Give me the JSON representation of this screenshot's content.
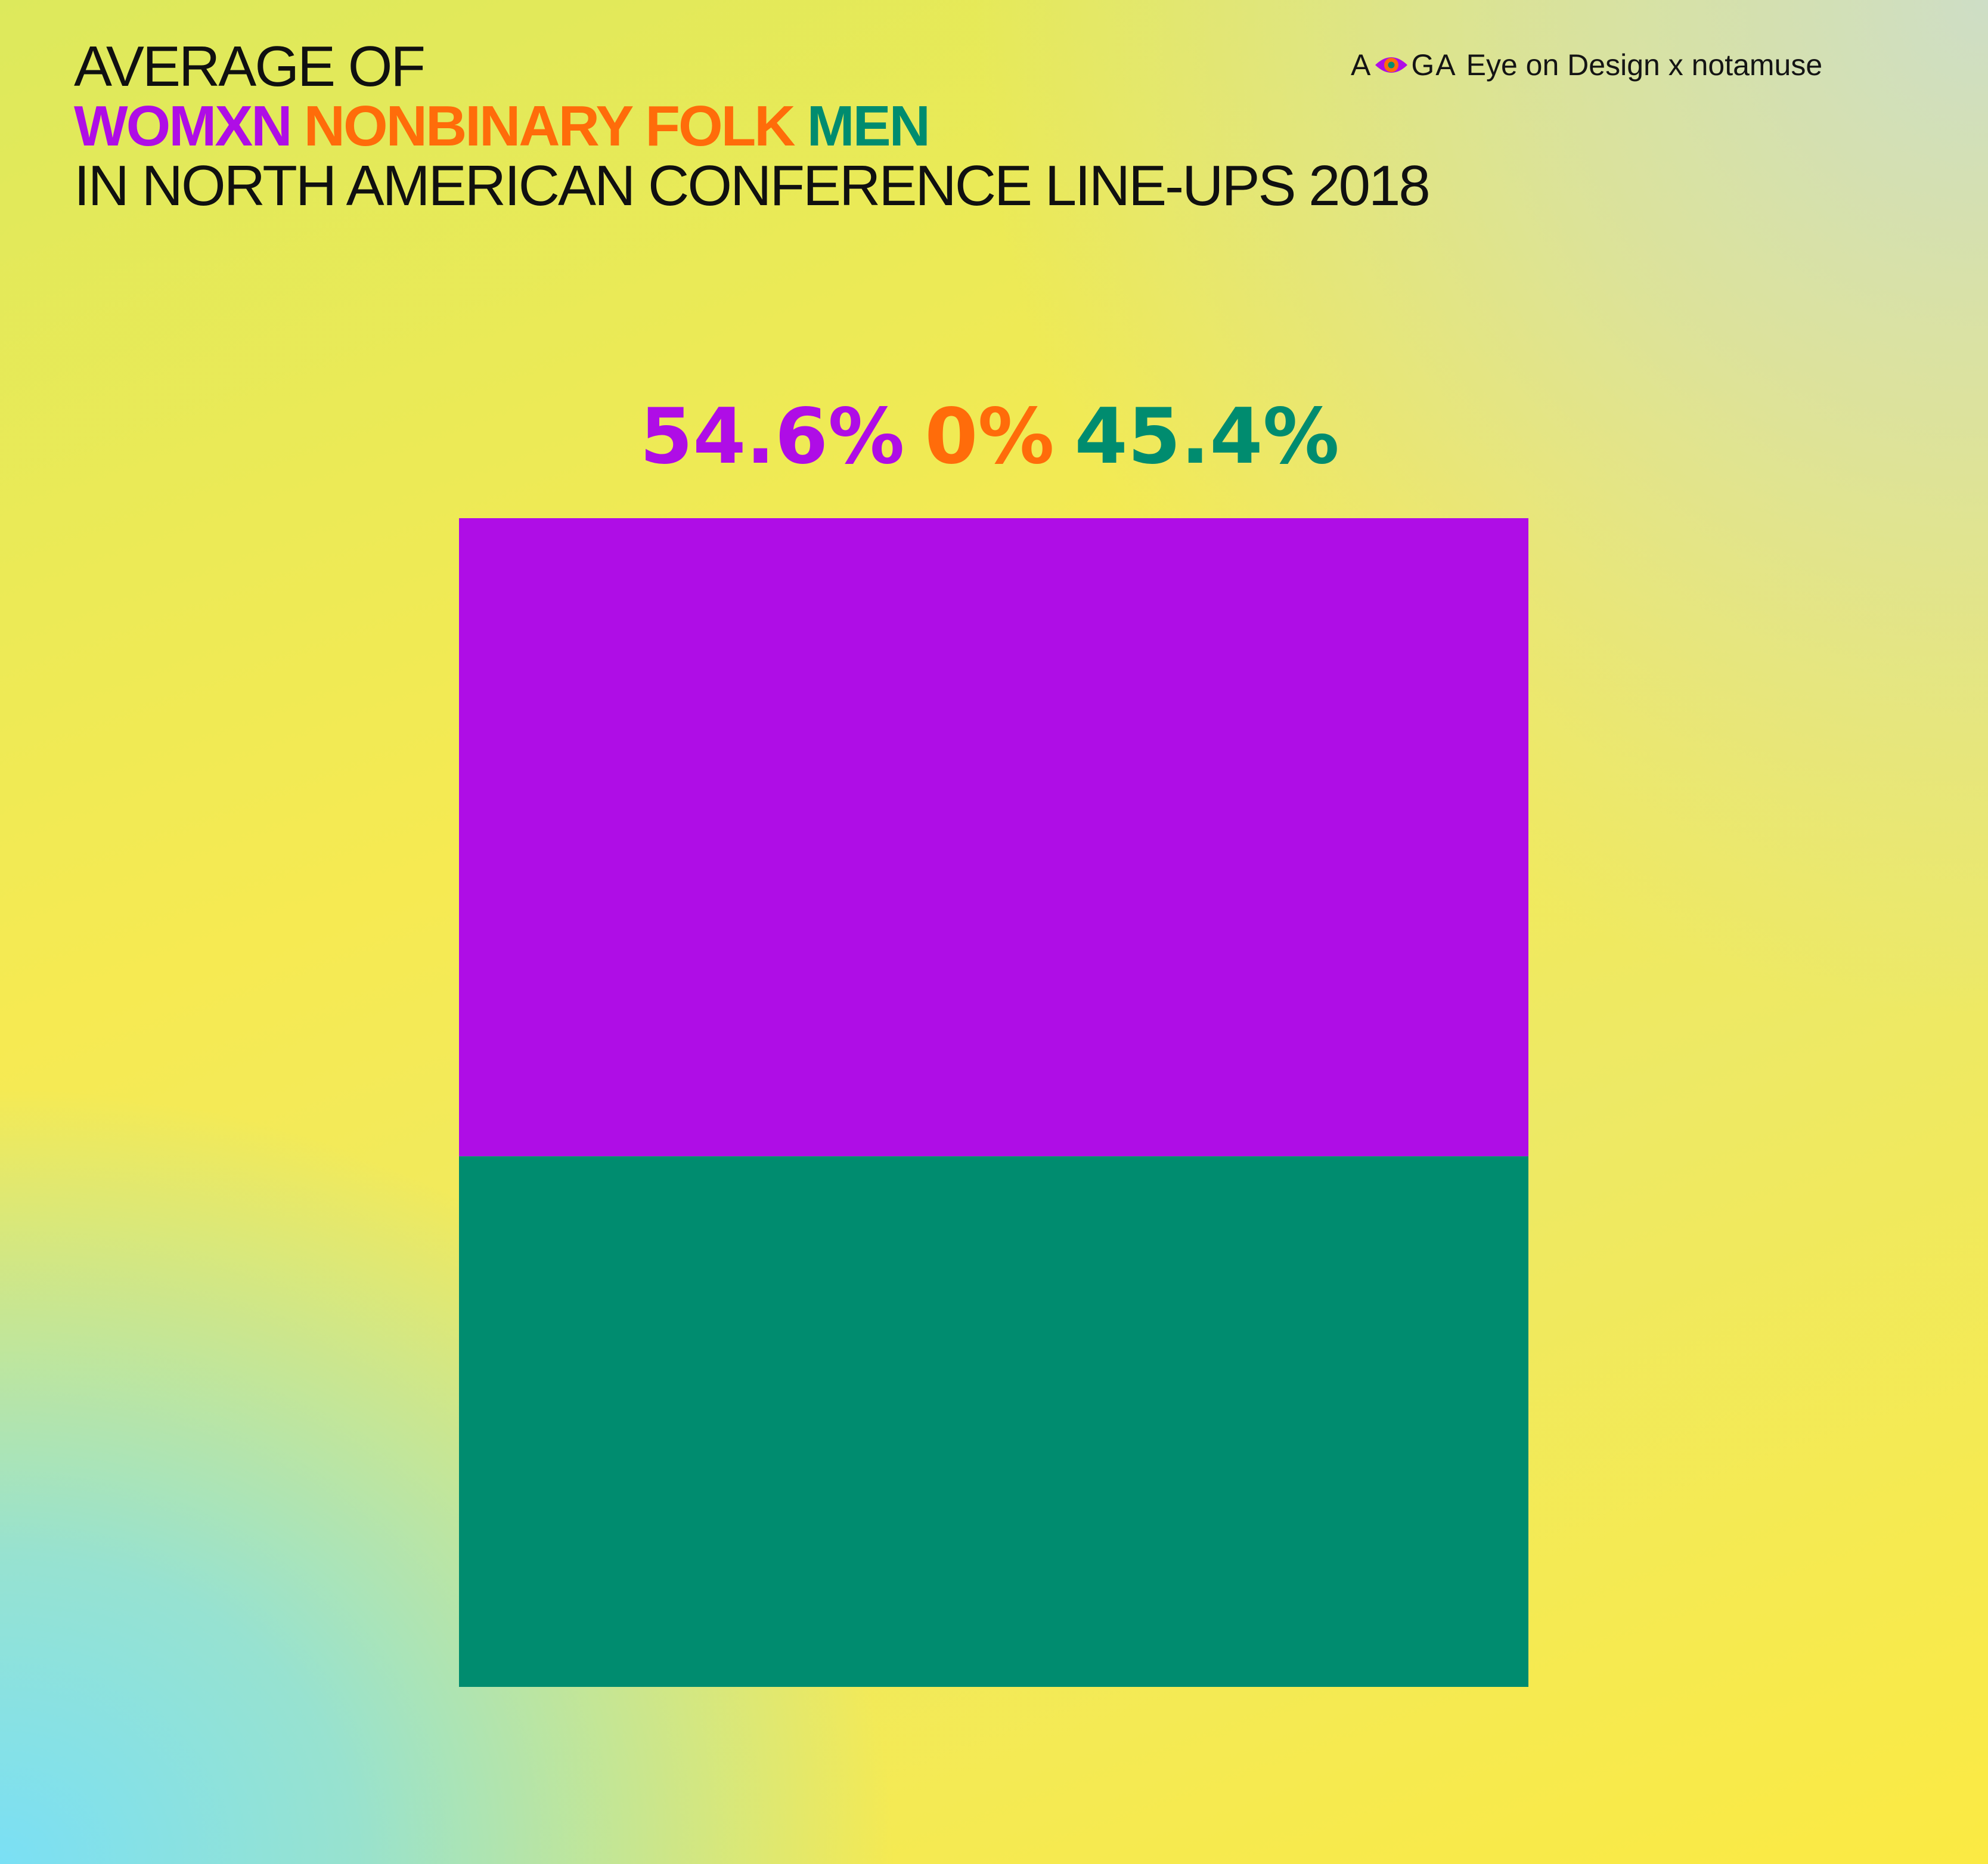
{
  "title": {
    "line1": "AVERAGE OF",
    "categories": [
      {
        "label": "WOMXN",
        "color": "#af0de6"
      },
      {
        "label": "NONBINARY FOLK",
        "color": "#ff6c0a"
      },
      {
        "label": "MEN",
        "color": "#008c6f"
      }
    ],
    "line3": "IN NORTH AMERICAN CONFERENCE LINE-UPS 2018"
  },
  "credit": {
    "logo_left": "A",
    "logo_icon": "eye-icon",
    "logo_right": "GA",
    "text": "Eye on Design x notamuse"
  },
  "chart_data": {
    "type": "bar",
    "stacked": true,
    "categories": [
      "WOMXN",
      "NONBINARY FOLK",
      "MEN"
    ],
    "values": [
      54.6,
      0,
      45.4
    ],
    "labels": [
      "54.6%",
      "0%",
      "45.4%"
    ],
    "colors": [
      "#af0de6",
      "#ff6c0a",
      "#008c6f"
    ],
    "unit": "%",
    "total": 100
  }
}
